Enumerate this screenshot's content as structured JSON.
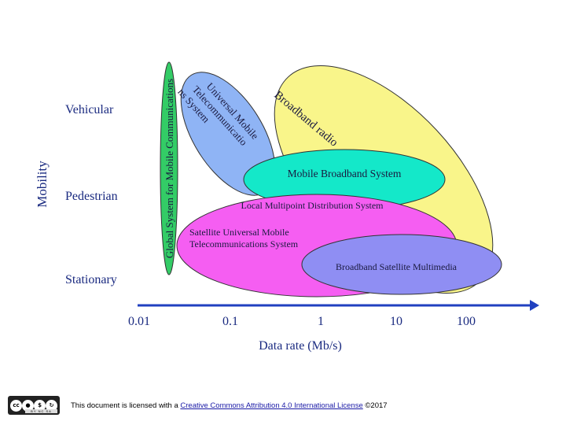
{
  "diagram": {
    "y_axis_title": "Mobility",
    "x_axis_title": "Data rate (Mb/s)",
    "mobility_levels": [
      "Vehicular",
      "Pedestrian",
      "Stationary"
    ],
    "rate_ticks": [
      "0.01",
      "0.1",
      "1",
      "10",
      "100"
    ],
    "regions": {
      "gsm": {
        "lines": [
          "Global System for Mobile Communications"
        ],
        "color": "#33cc66"
      },
      "umts": {
        "lines": [
          "Universal Mobile",
          "Telecommunicatio",
          "ns System"
        ],
        "color": "#8fb4f5"
      },
      "broadband_radio": {
        "lines": [
          "Broadband radio"
        ],
        "color": "#f9f58a"
      },
      "mbs": {
        "lines": [
          "Mobile Broadband System"
        ],
        "color": "#14e8c9"
      },
      "lmds": {
        "lines": [
          "Local Multipoint Distribution System"
        ],
        "color": "#f55ef2"
      },
      "sumts": {
        "lines": [
          "Satellite Universal Mobile",
          "Telecommunications System"
        ],
        "color": "#f55ef2"
      },
      "bsm": {
        "lines": [
          "Broadband Satellite Multimedia"
        ],
        "color": "#8f8ef3"
      }
    },
    "axis_color": "#2040c0"
  },
  "footer": {
    "license_icon_text": "cc",
    "license_icon_labels": [
      "BY",
      "NC",
      "SA"
    ],
    "prefix": "This document is licensed with a ",
    "link_text": "Creative Commons Attribution 4.0 International License",
    "suffix": " ©2017"
  }
}
